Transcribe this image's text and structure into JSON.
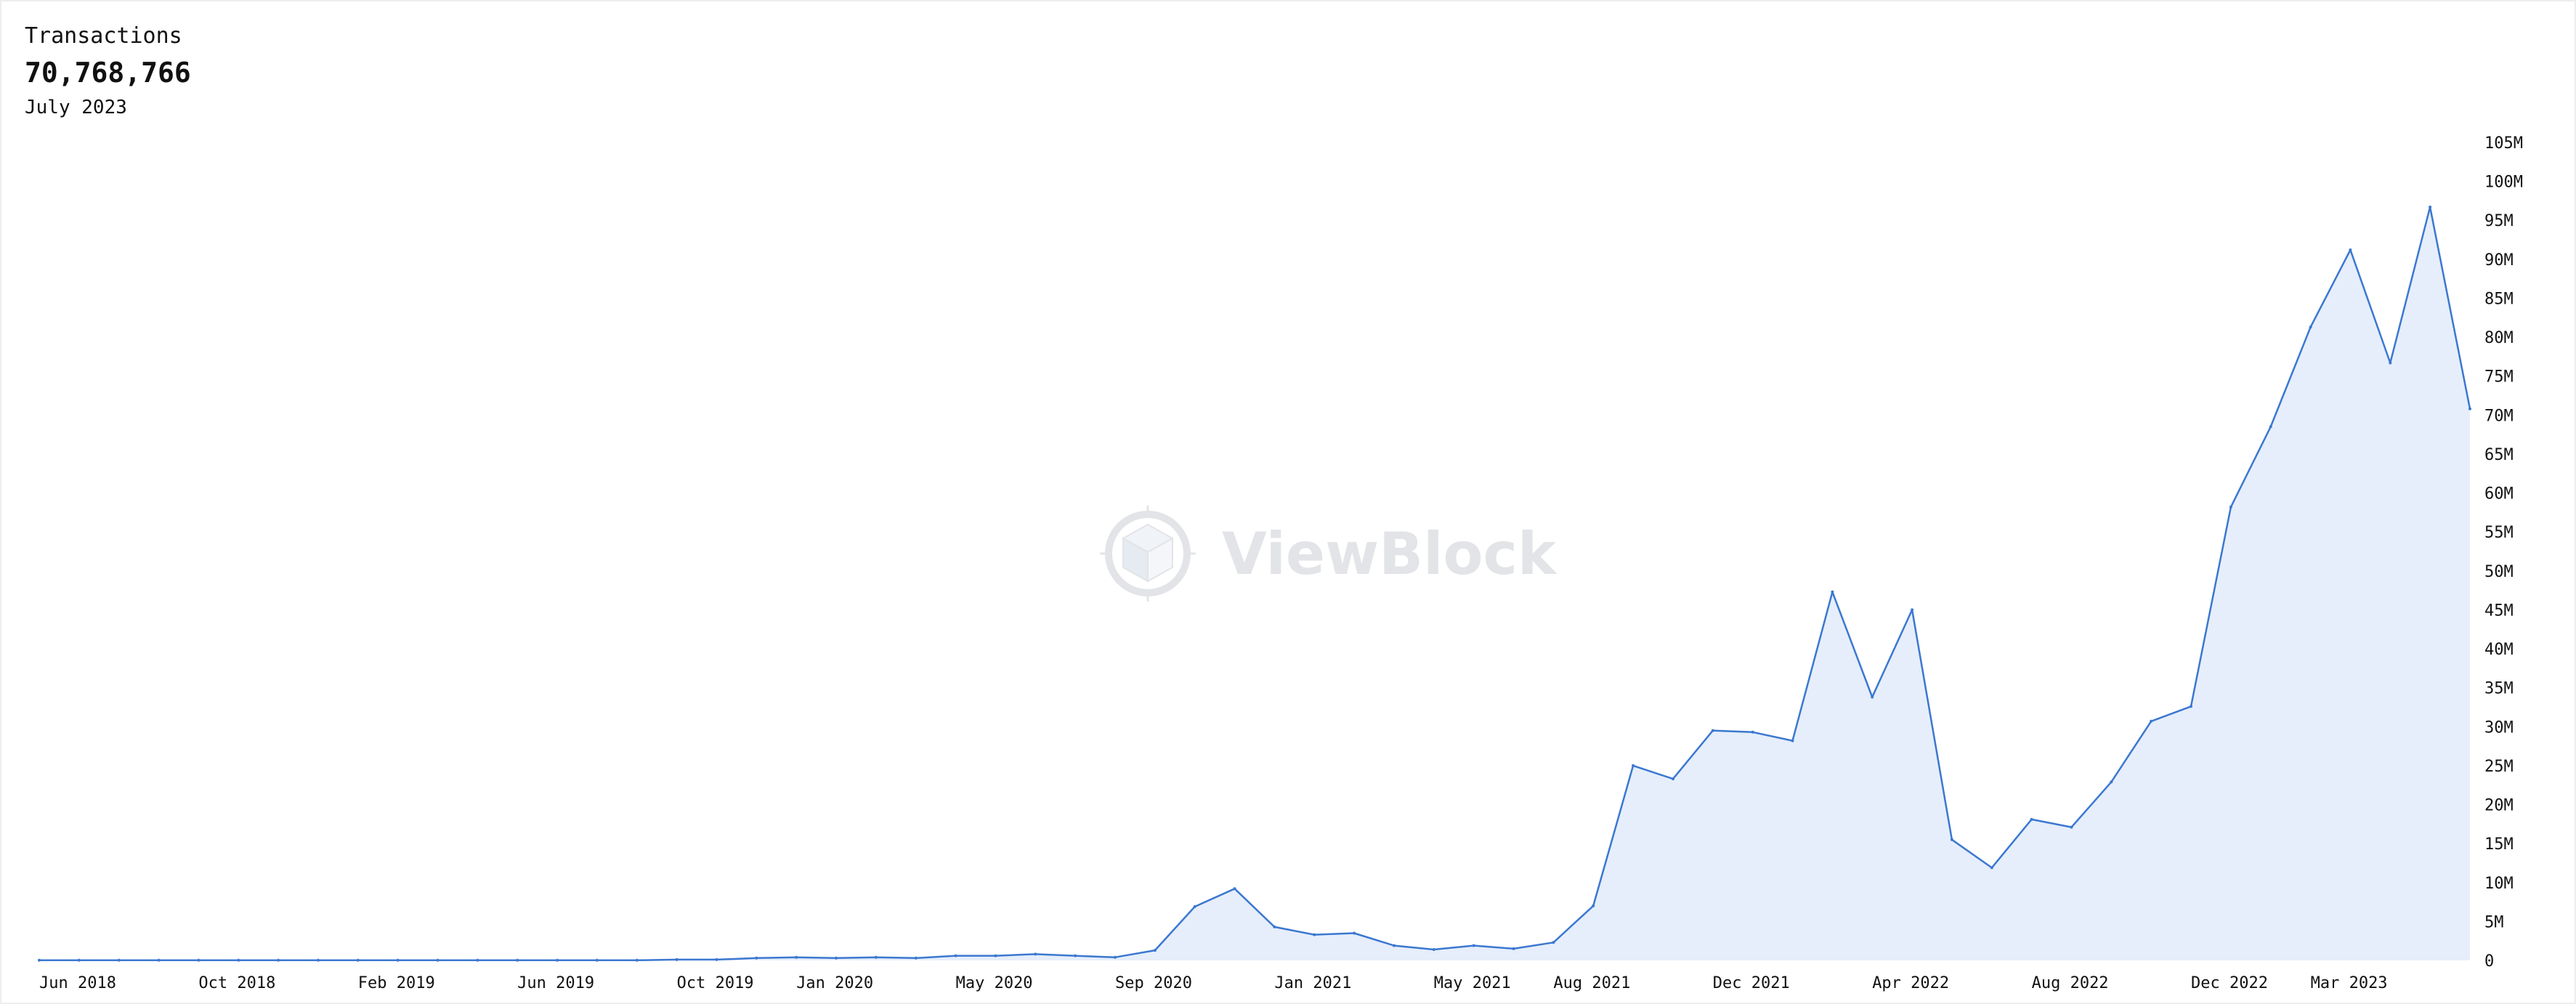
{
  "header": {
    "label": "Transactions",
    "value": "70,768,766",
    "period": "July 2023"
  },
  "watermark": {
    "text": "ViewBlock",
    "icon": "cube-logo-icon"
  },
  "colors": {
    "line": "#3b78d0",
    "fill": "#e6eefb",
    "text": "#111111",
    "watermark": "#e2e4e7"
  },
  "chart_data": {
    "type": "area",
    "title": "",
    "xlabel": "",
    "ylabel": "",
    "x": [
      "Jun 2018",
      "Jul 2018",
      "Aug 2018",
      "Sep 2018",
      "Oct 2018",
      "Nov 2018",
      "Dec 2018",
      "Jan 2019",
      "Feb 2019",
      "Mar 2019",
      "Apr 2019",
      "May 2019",
      "Jun 2019",
      "Jul 2019",
      "Aug 2019",
      "Sep 2019",
      "Oct 2019",
      "Nov 2019",
      "Dec 2019",
      "Jan 2020",
      "Feb 2020",
      "Mar 2020",
      "Apr 2020",
      "May 2020",
      "Jun 2020",
      "Jul 2020",
      "Aug 2020",
      "Sep 2020",
      "Oct 2020",
      "Nov 2020",
      "Dec 2020",
      "Jan 2021",
      "Feb 2021",
      "Mar 2021",
      "Apr 2021",
      "May 2021",
      "Jun 2021",
      "Jul 2021",
      "Aug 2021",
      "Sep 2021",
      "Oct 2021",
      "Nov 2021",
      "Dec 2021",
      "Jan 2022",
      "Feb 2022",
      "Mar 2022",
      "Apr 2022",
      "May 2022",
      "Jun 2022",
      "Jul 2022",
      "Aug 2022",
      "Sep 2022",
      "Oct 2022",
      "Nov 2022",
      "Dec 2022",
      "Jan 2023",
      "Feb 2023",
      "Mar 2023",
      "Apr 2023",
      "May 2023",
      "Jun 2023",
      "Jul 2023"
    ],
    "series": [
      {
        "values": [
          0.02,
          0.02,
          0.02,
          0.02,
          0.02,
          0.02,
          0.02,
          0.02,
          0.02,
          0.02,
          0.02,
          0.02,
          0.02,
          0.02,
          0.02,
          0.02,
          0.1,
          0.1,
          0.3,
          0.4,
          0.3,
          0.4,
          0.3,
          0.6,
          0.6,
          0.8,
          0.6,
          0.4,
          1.3,
          6.9,
          9.2,
          4.3,
          3.3,
          3.5,
          1.9,
          1.4,
          1.9,
          1.5,
          2.3,
          7.0,
          25.0,
          23.3,
          29.5,
          29.3,
          28.2,
          47.3,
          33.8,
          45.0,
          15.5,
          11.9,
          18.1,
          17.1,
          22.9,
          30.7,
          32.6,
          58.2,
          68.5,
          81.3,
          91.2,
          76.7,
          96.7,
          70.8
        ]
      }
    ],
    "xticks": [
      "Jun 2018",
      "Oct 2018",
      "Feb 2019",
      "Jun 2019",
      "Oct 2019",
      "Jan 2020",
      "May 2020",
      "Sep 2020",
      "Jan 2021",
      "May 2021",
      "Aug 2021",
      "Dec 2021",
      "Apr 2022",
      "Aug 2022",
      "Dec 2022",
      "Mar 2023"
    ],
    "yticks": [
      "0",
      "5M",
      "10M",
      "15M",
      "20M",
      "25M",
      "30M",
      "35M",
      "40M",
      "45M",
      "50M",
      "55M",
      "60M",
      "65M",
      "70M",
      "75M",
      "80M",
      "85M",
      "90M",
      "95M",
      "100M",
      "105M"
    ],
    "ylim": [
      0,
      105
    ],
    "grid": false,
    "legend": "none"
  }
}
